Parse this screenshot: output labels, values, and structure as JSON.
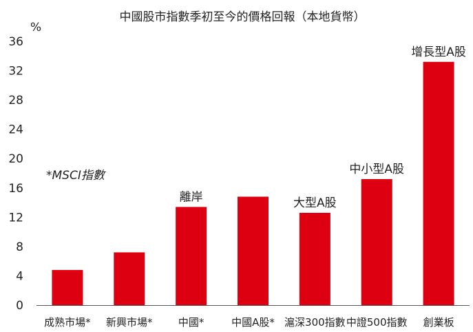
{
  "chart_data": {
    "type": "bar",
    "title": "中國股市指數季初至今的價格回報（本地貨幣）",
    "y_unit": "%",
    "note": "*MSCI指數",
    "categories": [
      "成熟市場*",
      "新興市場*",
      "中國*",
      "中國A股*",
      "滬深300指數",
      "中證500指數",
      "創業板"
    ],
    "values": [
      4.8,
      7.2,
      13.4,
      14.8,
      12.6,
      17.2,
      33.2
    ],
    "bar_labels": [
      "",
      "",
      "離岸",
      "",
      "大型A股",
      "中小型A股",
      "增長型A股"
    ],
    "ylim": [
      0,
      36
    ],
    "yticks": [
      0,
      4,
      8,
      12,
      16,
      20,
      24,
      28,
      32,
      36
    ],
    "bar_color": "#dd0011",
    "axis_color": "#555555",
    "grid": false,
    "legend": "none"
  }
}
